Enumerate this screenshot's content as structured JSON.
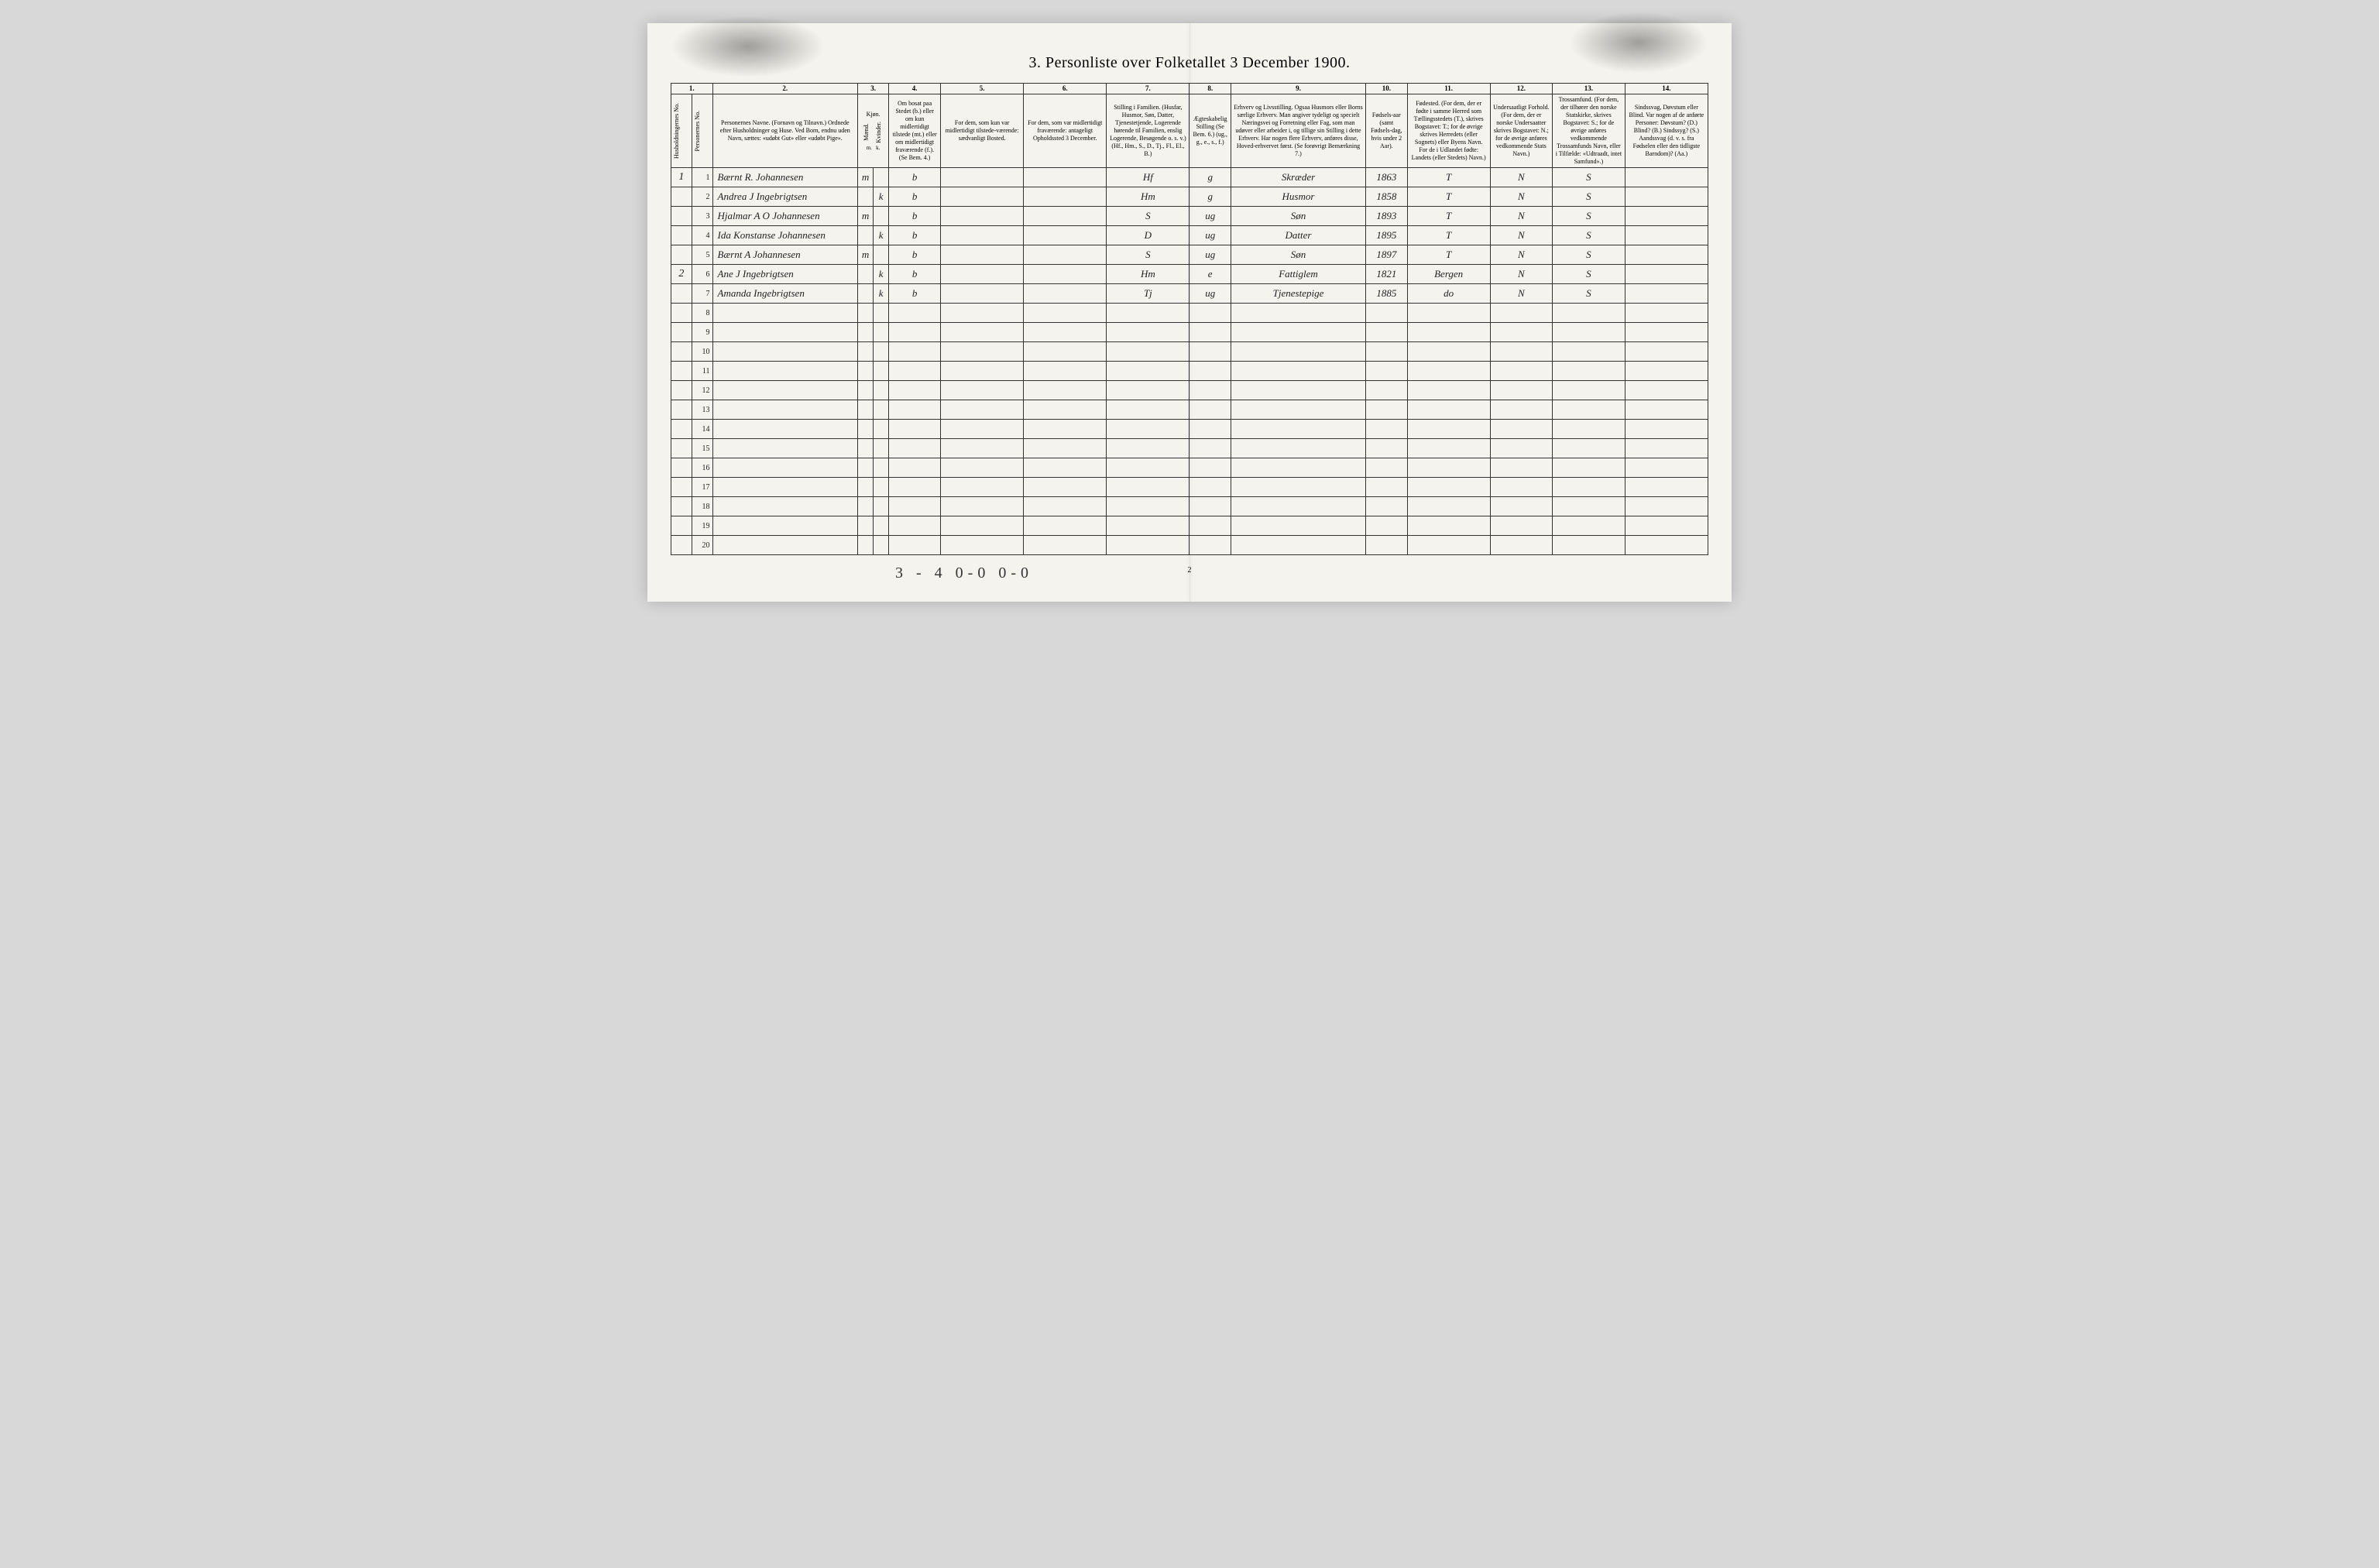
{
  "title": "3. Personliste over Folketallet 3 December 1900.",
  "headers": {
    "nums": [
      "1.",
      "2.",
      "3.",
      "4.",
      "5.",
      "6.",
      "7.",
      "8.",
      "9.",
      "10.",
      "11.",
      "12.",
      "13.",
      "14."
    ],
    "c1a": "Husholdningernes No.",
    "c1b": "Personernes No.",
    "c2": "Personernes Navne.\n(Fornavn og Tilnavn.)\nOrdnede efter Husholdninger og Huse.\nVed Born, endnu uden Navn, sættes: «udøbt Gut» eller «udøbt Pige».",
    "c3": "Kjøn.",
    "c3a": "Mænd.",
    "c3b": "Kvinder.",
    "c4": "Om bosat paa Stedet (b.) eller om kun midlertidigt tilstede (mt.) eller om midlertidigt fraværende (f.).\n(Se Bem. 4.)",
    "c5": "For dem, som kun var midlertidigt tilstede-værende:\nsædvanligt Bosted.",
    "c6": "For dem, som var midlertidigt fraværende:\nantageligt Opholdssted 3 December.",
    "c7": "Stilling i Familien.\n(Husfar, Husmor, Søn, Datter, Tjenestetjende, Logerende hørende til Familien, enslig Logerende, Besøgende o. s. v.)\n(Hf., Hm., S., D., Tj., Fl., El., B.)",
    "c8": "Ægteskabelig Stilling\n(Se Bem. 6.)\n(ug., g., e., s., f.)",
    "c9": "Erhverv og Livsstilling.\nOgsaa Husmors eller Borns særlige Erhverv. Man angiver tydeligt og specielt Næringsvei og Forretning eller Fag, som man udøver eller arbeider i, og tillige sin Stilling i dette Erhverv. Har nogen flere Erhverv, anføres disse, Hoved-erhvervet først.\n(Se forøvrigt Bemærkning 7.)",
    "c10": "Fødsels-aar\n(samt Fødsels-dag, hvis under 2 Aar).",
    "c11": "Fødested.\n(For dem, der er fødte i samme Herred som Tællingsstedets (T.), skrives Bogstavet: T.; for de øvrige skrives Herredets (eller Sognets) eller Byens Navn. For de i Udlandet fødte: Landets (eller Stedets) Navn.)",
    "c12": "Undersaatligt Forhold.\n(For dem, der er norske Undersaatter skrives Bogstavet: N.; for de øvrige anføres vedkommende Stats Navn.)",
    "c13": "Trossamfund.\n(For dem, der tilhører den norske Statskirke, skrives Bogstavet: S.; for de øvrige anføres vedkommende Trossamfunds Navn, eller i Tilfælde: «Udtraadt, intet Samfund».)",
    "c14": "Sindssvag, Døvstum eller Blind.\nVar nogen af de anførte Personer:\nDøvstum? (D.)\nBlind? (B.)\nSindssyg? (S.)\nAandssvag (d. v. s. fra Fødselen eller den tidligste Barndom)? (Aa.)"
  },
  "rows": [
    {
      "hh": "1",
      "no": "1",
      "name": "Bærnt R. Johannesen",
      "m": "m",
      "k": "",
      "res": "b",
      "c5": "",
      "c6": "",
      "fam": "Hf",
      "civ": "g",
      "occ": "Skræder",
      "year": "1863",
      "birthplace": "T",
      "nat": "N",
      "rel": "S",
      "dis": ""
    },
    {
      "hh": "",
      "no": "2",
      "name": "Andrea J Ingebrigtsen",
      "m": "",
      "k": "k",
      "res": "b",
      "c5": "",
      "c6": "",
      "fam": "Hm",
      "civ": "g",
      "occ": "Husmor",
      "year": "1858",
      "birthplace": "T",
      "nat": "N",
      "rel": "S",
      "dis": ""
    },
    {
      "hh": "",
      "no": "3",
      "name": "Hjalmar A O Johannesen",
      "m": "m",
      "k": "",
      "res": "b",
      "c5": "",
      "c6": "",
      "fam": "S",
      "civ": "ug",
      "occ": "Søn",
      "year": "1893",
      "birthplace": "T",
      "nat": "N",
      "rel": "S",
      "dis": ""
    },
    {
      "hh": "",
      "no": "4",
      "name": "Ida Konstanse Johannesen",
      "m": "",
      "k": "k",
      "res": "b",
      "c5": "",
      "c6": "",
      "fam": "D",
      "civ": "ug",
      "occ": "Datter",
      "year": "1895",
      "birthplace": "T",
      "nat": "N",
      "rel": "S",
      "dis": ""
    },
    {
      "hh": "",
      "no": "5",
      "name": "Bærnt A Johannesen",
      "m": "m",
      "k": "",
      "res": "b",
      "c5": "",
      "c6": "",
      "fam": "S",
      "civ": "ug",
      "occ": "Søn",
      "year": "1897",
      "birthplace": "T",
      "nat": "N",
      "rel": "S",
      "dis": ""
    },
    {
      "hh": "2",
      "no": "6",
      "name": "Ane J Ingebrigtsen",
      "m": "",
      "k": "k",
      "res": "b",
      "c5": "",
      "c6": "",
      "fam": "Hm",
      "civ": "e",
      "occ": "Fattiglem",
      "year": "1821",
      "birthplace": "Bergen",
      "nat": "N",
      "rel": "S",
      "dis": ""
    },
    {
      "hh": "",
      "no": "7",
      "name": "Amanda Ingebrigtsen",
      "m": "",
      "k": "k",
      "res": "b",
      "c5": "",
      "c6": "",
      "fam": "Tj",
      "civ": "ug",
      "occ": "Tjenestepige",
      "year": "1885",
      "birthplace": "do",
      "nat": "N",
      "rel": "S",
      "dis": ""
    }
  ],
  "blank_rows": [
    8,
    9,
    10,
    11,
    12,
    13,
    14,
    15,
    16,
    17,
    18,
    19,
    20
  ],
  "footer_annotation": "3 - 4  0-0   0-0",
  "page_number": "2"
}
